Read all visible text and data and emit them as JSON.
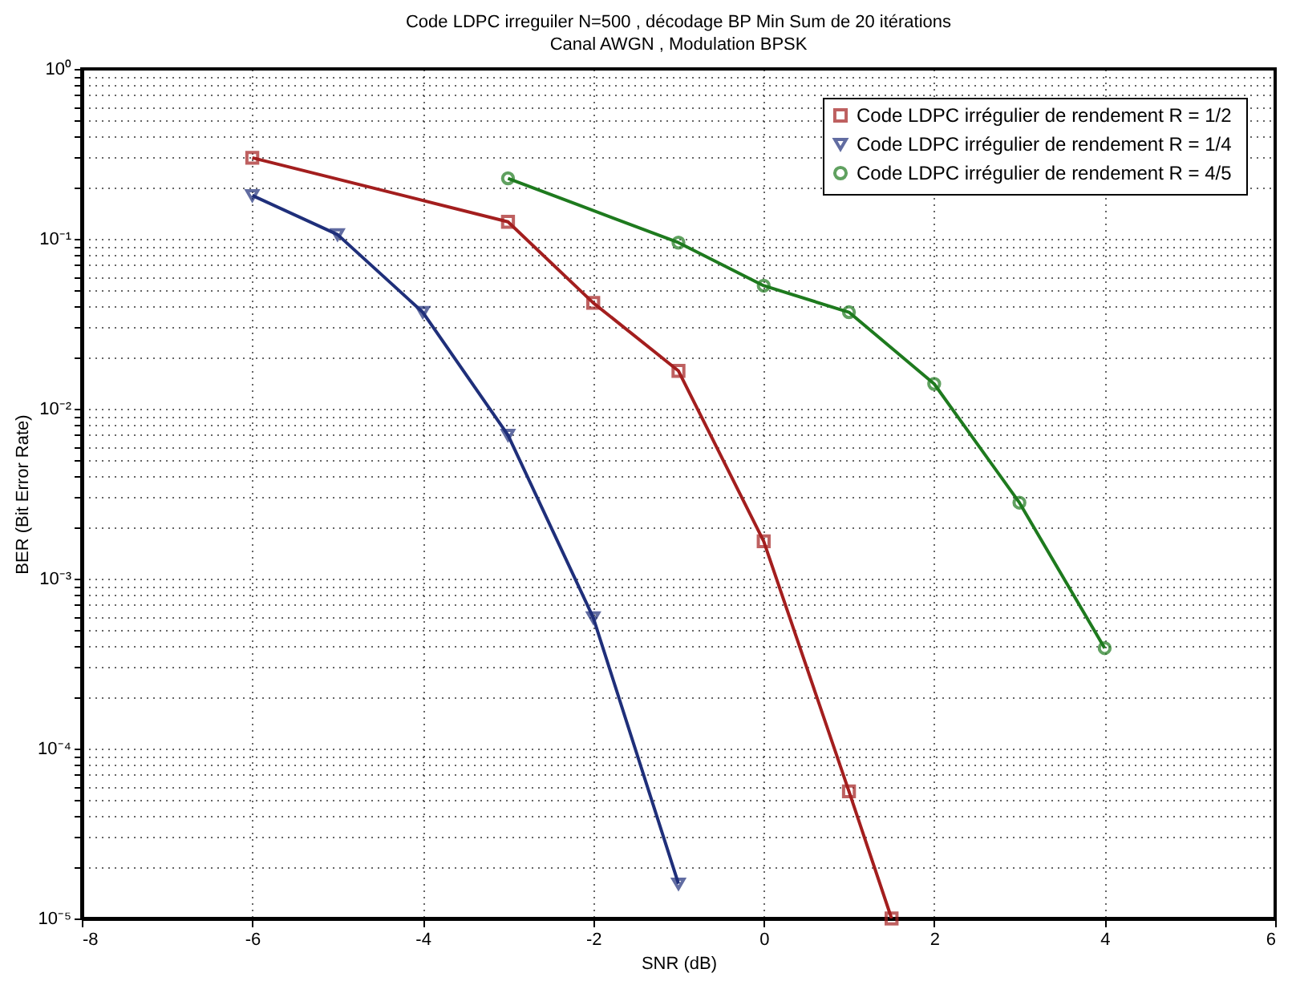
{
  "chart_data": {
    "type": "line",
    "title": "Code LDPC irreguiler N=500 , décodage BP Min Sum de 20 itérations",
    "subtitle": "Canal AWGN , Modulation BPSK",
    "xlabel": "SNR (dB)",
    "ylabel": "BER (Bit Error Rate)",
    "log": "y",
    "grid": true,
    "legend": "top right",
    "line_style": "solid",
    "xlim": [
      -8,
      6
    ],
    "xticks": [
      -8,
      -6,
      -4,
      -2,
      0,
      2,
      4,
      6
    ],
    "ylim": [
      1e-05,
      1
    ],
    "yticks": [
      {
        "value": 1e-05,
        "label": "10⁻⁵"
      },
      {
        "value": 2e-05,
        "label": null
      },
      {
        "value": 3e-05,
        "label": null
      },
      {
        "value": 4e-05,
        "label": null
      },
      {
        "value": 5e-05,
        "label": null
      },
      {
        "value": 6e-05,
        "label": null
      },
      {
        "value": 7e-05,
        "label": null
      },
      {
        "value": 8e-05,
        "label": null
      },
      {
        "value": 9e-05,
        "label": null
      },
      {
        "value": 0.0001,
        "label": "10⁻⁴"
      },
      {
        "value": 0.0002,
        "label": null
      },
      {
        "value": 0.0003,
        "label": null
      },
      {
        "value": 0.0004,
        "label": null
      },
      {
        "value": 0.0005,
        "label": null
      },
      {
        "value": 0.0006,
        "label": null
      },
      {
        "value": 0.0007,
        "label": null
      },
      {
        "value": 0.0008,
        "label": null
      },
      {
        "value": 0.0009,
        "label": null
      },
      {
        "value": 0.001,
        "label": "10⁻³"
      },
      {
        "value": 0.002,
        "label": null
      },
      {
        "value": 0.003,
        "label": null
      },
      {
        "value": 0.004,
        "label": null
      },
      {
        "value": 0.005,
        "label": null
      },
      {
        "value": 0.006,
        "label": null
      },
      {
        "value": 0.007,
        "label": null
      },
      {
        "value": 0.008,
        "label": null
      },
      {
        "value": 0.009,
        "label": null
      },
      {
        "value": 0.01,
        "label": "10⁻²"
      },
      {
        "value": 0.02,
        "label": null
      },
      {
        "value": 0.03,
        "label": null
      },
      {
        "value": 0.04,
        "label": null
      },
      {
        "value": 0.05,
        "label": null
      },
      {
        "value": 0.06,
        "label": null
      },
      {
        "value": 0.07,
        "label": null
      },
      {
        "value": 0.08,
        "label": null
      },
      {
        "value": 0.09,
        "label": null
      },
      {
        "value": 0.1,
        "label": "10⁻¹"
      },
      {
        "value": 0.2,
        "label": null
      },
      {
        "value": 0.3,
        "label": null
      },
      {
        "value": 0.4,
        "label": null
      },
      {
        "value": 0.5,
        "label": null
      },
      {
        "value": 0.6,
        "label": null
      },
      {
        "value": 0.7,
        "label": null
      },
      {
        "value": 0.8,
        "label": null
      },
      {
        "value": 0.9,
        "label": null
      },
      {
        "value": 1,
        "label": "10⁰"
      }
    ],
    "series": [
      {
        "name": "Code LDPC irrégulier de rendement  R = 1/2",
        "color": "#a31e1e",
        "marker": "square",
        "x": [
          -6,
          -3,
          -2,
          -1,
          0,
          1,
          1.5
        ],
        "values": [
          0.3,
          0.126,
          0.042,
          0.0167,
          0.00166,
          5.6e-05,
          1e-05
        ]
      },
      {
        "name": "Code LDPC irrégulier de rendement  R = 1/4",
        "color": "#1f2f7a",
        "marker": "triangle",
        "x": [
          -6,
          -5,
          -4,
          -3,
          -2,
          -1
        ],
        "values": [
          0.18,
          0.106,
          0.037,
          0.007,
          0.00059,
          1.6e-05
        ]
      },
      {
        "name": "Code LDPC irrégulier de rendement  R = 4/5",
        "color": "#1e7a1e",
        "marker": "circle",
        "x": [
          -3,
          -1,
          0,
          1,
          2,
          3,
          4
        ],
        "values": [
          0.227,
          0.095,
          0.053,
          0.037,
          0.014,
          0.0028,
          0.00039
        ]
      }
    ]
  }
}
